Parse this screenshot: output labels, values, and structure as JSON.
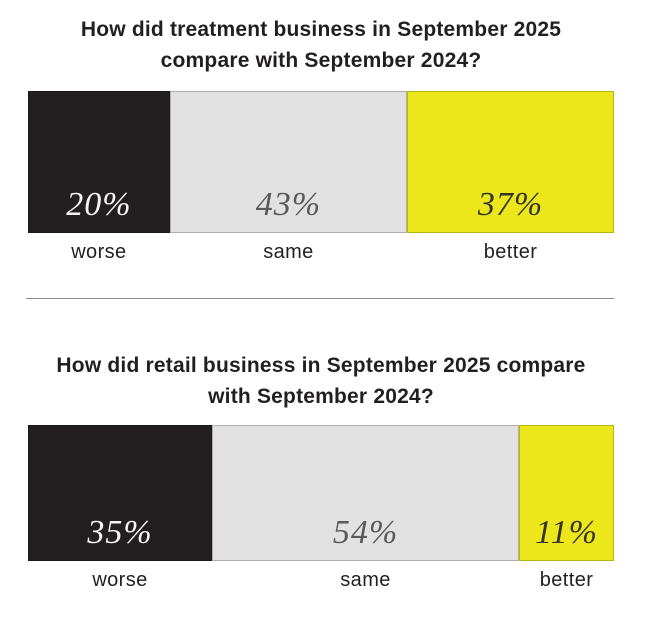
{
  "charts": [
    {
      "title": "How did treatment business in September 2025 compare with September 2024?",
      "title_lines": [
        "How did treatment business in September 2025",
        "compare with September 2024?"
      ],
      "segments": [
        {
          "label": "worse",
          "pct_label": "20%",
          "value": 20,
          "color": "#231f20",
          "text_color": "#f5f4f2",
          "display_width_pct": 24.2
        },
        {
          "label": "same",
          "pct_label": "43%",
          "value": 43,
          "color": "#e2e1e1",
          "text_color": "#58595b",
          "display_width_pct": 40.5
        },
        {
          "label": "better",
          "pct_label": "37%",
          "value": 37,
          "color": "#ece71a",
          "text_color": "#35332a",
          "display_width_pct": 35.3
        }
      ]
    },
    {
      "title": "How did retail business in September 2025 compare with September 2024?",
      "title_lines": [
        "How did retail business in September 2025 compare",
        "with September 2024?"
      ],
      "segments": [
        {
          "label": "worse",
          "pct_label": "35%",
          "value": 35,
          "color": "#231f20",
          "text_color": "#f5f4f2",
          "display_width_pct": 31.4
        },
        {
          "label": "same",
          "pct_label": "54%",
          "value": 54,
          "color": "#e2e1e1",
          "text_color": "#58595b",
          "display_width_pct": 52.4
        },
        {
          "label": "better",
          "pct_label": "11%",
          "value": 11,
          "color": "#ece71a",
          "text_color": "#35332a",
          "display_width_pct": 16.2
        }
      ]
    }
  ],
  "chart_data": [
    {
      "type": "bar",
      "subtype": "horizontal-stacked-100pct",
      "title": "How did treatment business in September 2025 compare with September 2024?",
      "categories": [
        "worse",
        "same",
        "better"
      ],
      "values": [
        20,
        43,
        37
      ],
      "unit": "%",
      "colors": [
        "#231f20",
        "#e2e1e1",
        "#ece71a"
      ],
      "value_labels": [
        "20%",
        "43%",
        "37%"
      ],
      "legend": "none",
      "grid": false
    },
    {
      "type": "bar",
      "subtype": "horizontal-stacked-100pct",
      "title": "How did retail business in September 2025 compare with September 2024?",
      "categories": [
        "worse",
        "same",
        "better"
      ],
      "values": [
        35,
        54,
        11
      ],
      "unit": "%",
      "colors": [
        "#231f20",
        "#e2e1e1",
        "#ece71a"
      ],
      "value_labels": [
        "35%",
        "54%",
        "11%"
      ],
      "legend": "none",
      "grid": false
    }
  ]
}
